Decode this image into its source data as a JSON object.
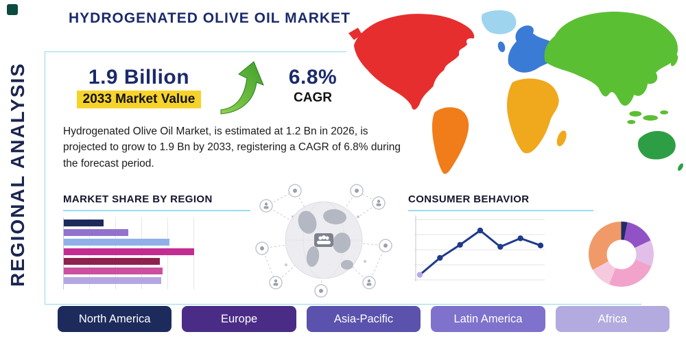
{
  "header": {
    "title": "HYDROGENATED OLIVE OIL MARKET"
  },
  "side_label": "REGIONAL ANALYSIS",
  "highlights": {
    "market_value": "1.9 Billion",
    "market_value_caption": "2033 Market Value",
    "cagr_value": "6.8%",
    "cagr_caption": "CAGR"
  },
  "description": "Hydrogenated Olive Oil Market, is estimated at 1.2 Bn in 2026, is projected to grow to 1.9 Bn by 2033, registering a CAGR of 6.8% during the forecast period.",
  "sections": {
    "market_share_title": "MARKET SHARE BY REGION",
    "consumer_behavior_title": "CONSUMER BEHAVIOR"
  },
  "region_buttons": [
    {
      "label": "North America",
      "color": "#1d2b5c"
    },
    {
      "label": "Europe",
      "color": "#4a2c86"
    },
    {
      "label": "Asia-Pacific",
      "color": "#5a52ad"
    },
    {
      "label": "Latin America",
      "color": "#7e72cc"
    },
    {
      "label": "Africa",
      "color": "#b3abdf"
    }
  ],
  "theme": {
    "accent_navy": "#1b2a6b",
    "accent_cyan": "#8fd8ef",
    "highlight_yellow": "#f6d32a",
    "arrow_green": "#57b53a"
  },
  "chart_data": [
    {
      "type": "bar",
      "title": "MARKET SHARE BY REGION",
      "orientation": "horizontal",
      "values": [
        29,
        47,
        77,
        95,
        70,
        72,
        71
      ],
      "colors": [
        "#1d2b5c",
        "#9173ce",
        "#8fb1e8",
        "#c42c92",
        "#8f2050",
        "#cc4fa0",
        "#b5a6e3"
      ],
      "xlim": [
        0,
        100
      ],
      "grid": "vertical",
      "tick_labels_visible": false
    },
    {
      "type": "line",
      "title": "CONSUMER BEHAVIOR",
      "x": [
        1,
        2,
        3,
        4,
        5,
        6,
        7
      ],
      "values": [
        12,
        38,
        58,
        80,
        55,
        68,
        57
      ],
      "line_color": "#1e3a8c",
      "marker_color": "#1e3a8c",
      "first_marker_color": "#b9a8e6",
      "grid": "horizontal",
      "tick_labels_visible": false
    },
    {
      "type": "pie",
      "title": "Regional share donut",
      "donut": true,
      "slices": [
        {
          "value": 3,
          "color": "#1e2d66"
        },
        {
          "value": 15,
          "color": "#9152c6"
        },
        {
          "value": 13,
          "color": "#e2bfe8"
        },
        {
          "value": 25,
          "color": "#f2a3cb"
        },
        {
          "value": 11,
          "color": "#f6cade"
        },
        {
          "value": 33,
          "color": "#f09a6a"
        }
      ]
    }
  ]
}
